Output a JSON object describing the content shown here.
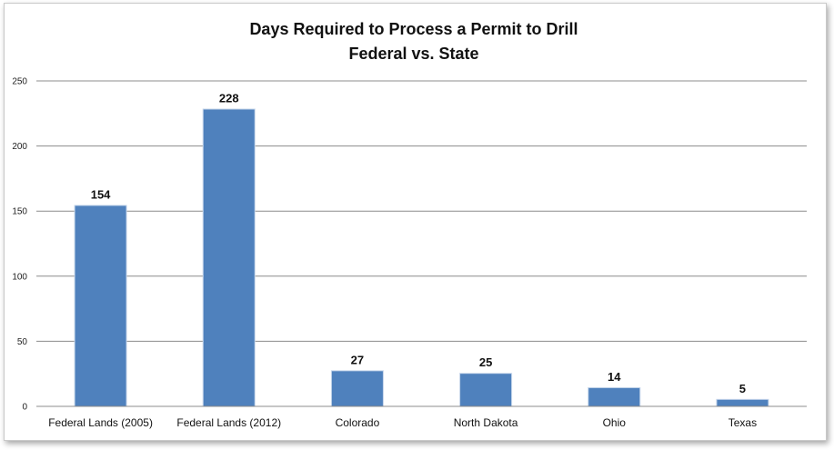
{
  "chart_data": {
    "type": "bar",
    "title": "Days Required to Process a Permit to Drill",
    "subtitle": "Federal vs. State",
    "categories": [
      "Federal Lands (2005)",
      "Federal Lands (2012)",
      "Colorado",
      "North Dakota",
      "Ohio",
      "Texas"
    ],
    "values": [
      154,
      228,
      27,
      25,
      14,
      5
    ],
    "data_labels": [
      "154",
      "228",
      "27",
      "25",
      "14",
      "5"
    ],
    "ylim": [
      0,
      250
    ],
    "yticks": [
      0,
      50,
      100,
      150,
      200,
      250
    ],
    "ytick_labels": [
      "0",
      "50",
      "100",
      "150",
      "200",
      "250"
    ],
    "grid": true,
    "legend": "none",
    "bar_color": "#4f81bd"
  }
}
